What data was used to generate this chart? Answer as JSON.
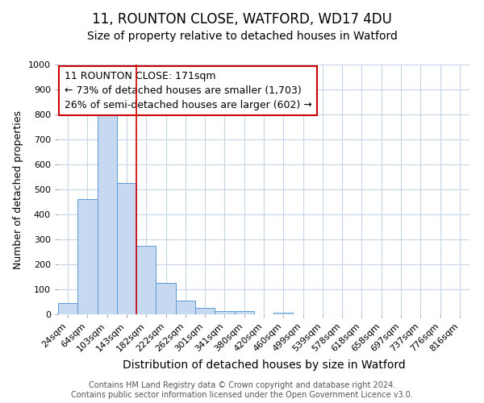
{
  "title1": "11, ROUNTON CLOSE, WATFORD, WD17 4DU",
  "title2": "Size of property relative to detached houses in Watford",
  "xlabel": "Distribution of detached houses by size in Watford",
  "ylabel": "Number of detached properties",
  "categories": [
    "24sqm",
    "64sqm",
    "103sqm",
    "143sqm",
    "182sqm",
    "222sqm",
    "262sqm",
    "301sqm",
    "341sqm",
    "380sqm",
    "420sqm",
    "460sqm",
    "499sqm",
    "539sqm",
    "578sqm",
    "618sqm",
    "658sqm",
    "697sqm",
    "737sqm",
    "776sqm",
    "816sqm"
  ],
  "values": [
    45,
    460,
    810,
    525,
    275,
    125,
    55,
    25,
    12,
    12,
    0,
    8,
    0,
    0,
    0,
    0,
    0,
    0,
    0,
    0,
    0
  ],
  "bar_color": "#c6d9f0",
  "bar_edge_color": "#5b9bd5",
  "red_line_x": 4.0,
  "annotation_line1": "11 ROUNTON CLOSE: 171sqm",
  "annotation_line2": "← 73% of detached houses are smaller (1,703)",
  "annotation_line3": "26% of semi-detached houses are larger (602) →",
  "annotation_box_color": "#ffffff",
  "annotation_box_edge_color": "#cc0000",
  "red_line_color": "#cc0000",
  "ylim": [
    0,
    1000
  ],
  "grid_color": "#c8d4e8",
  "background_color": "#ffffff",
  "footer1": "Contains HM Land Registry data © Crown copyright and database right 2024.",
  "footer2": "Contains public sector information licensed under the Open Government Licence v3.0.",
  "title1_fontsize": 12,
  "title2_fontsize": 10,
  "xlabel_fontsize": 10,
  "ylabel_fontsize": 9,
  "tick_fontsize": 8,
  "annotation_fontsize": 9,
  "footer_fontsize": 7
}
